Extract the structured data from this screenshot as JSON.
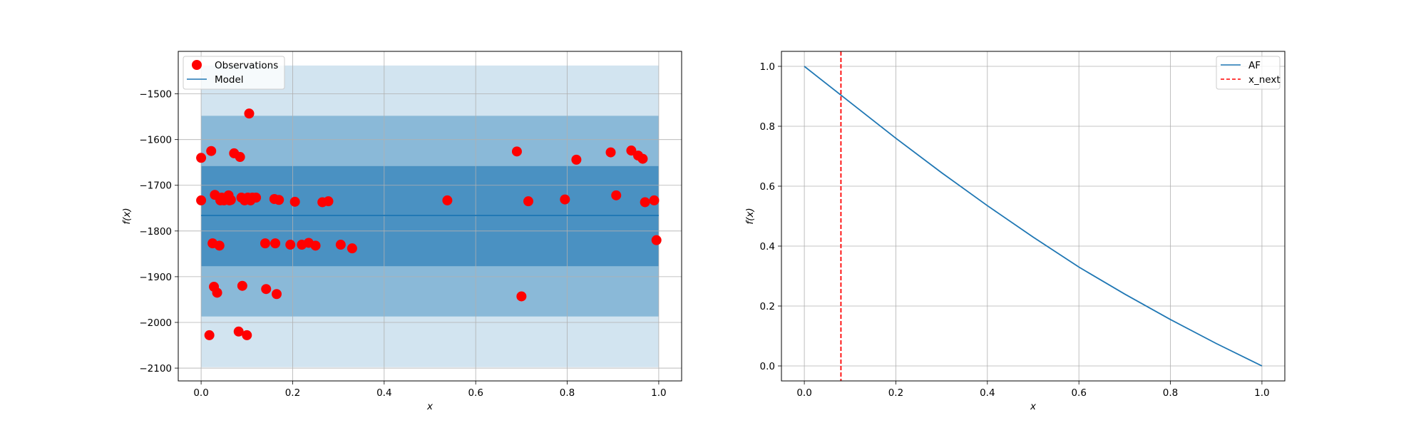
{
  "chart_data": [
    {
      "type": "scatter",
      "xlabel": "x",
      "ylabel": "f(x)",
      "xlim": [
        -0.05,
        1.05
      ],
      "ylim": [
        -2128,
        -1407
      ],
      "xticks": [
        0.0,
        0.2,
        0.4,
        0.6,
        0.8,
        1.0
      ],
      "xtick_labels": [
        "0.0",
        "0.2",
        "0.4",
        "0.6",
        "0.8",
        "1.0"
      ],
      "yticks": [
        -1500,
        -1600,
        -1700,
        -1800,
        -1900,
        -2000,
        -2100
      ],
      "ytick_labels": [
        "−1500",
        "−1600",
        "−1700",
        "−1800",
        "−1900",
        "−2000",
        "−2100"
      ],
      "grid": true,
      "legend_position": "top-left",
      "legend": [
        {
          "label": "Observations",
          "marker": "circle",
          "color": "#ff0000"
        },
        {
          "label": "Model",
          "marker": "line",
          "color": "#1f77b4"
        }
      ],
      "model": {
        "x": [
          0.0,
          1.0
        ],
        "mean": -1766
      },
      "confidence_bands": [
        {
          "lower": -2098,
          "upper": -1438,
          "color": "#1f77b4",
          "opacity": 0.2
        },
        {
          "lower": -1987,
          "upper": -1548,
          "color": "#1f77b4",
          "opacity": 0.4
        },
        {
          "lower": -1877,
          "upper": -1658,
          "color": "#1f77b4",
          "opacity": 0.6
        }
      ],
      "observations": {
        "color": "#ff0000",
        "x": [
          0.0,
          0.0,
          0.018,
          0.022,
          0.025,
          0.028,
          0.03,
          0.035,
          0.04,
          0.042,
          0.045,
          0.05,
          0.06,
          0.062,
          0.065,
          0.072,
          0.082,
          0.085,
          0.088,
          0.09,
          0.095,
          0.1,
          0.102,
          0.105,
          0.108,
          0.112,
          0.12,
          0.14,
          0.142,
          0.16,
          0.162,
          0.165,
          0.17,
          0.195,
          0.205,
          0.22,
          0.235,
          0.25,
          0.265,
          0.278,
          0.305,
          0.33,
          0.538,
          0.69,
          0.7,
          0.715,
          0.795,
          0.82,
          0.895,
          0.907,
          0.94,
          0.955,
          0.965,
          0.97,
          0.99,
          0.995
        ],
        "y": [
          -1640,
          -1733,
          -2028,
          -1625,
          -1827,
          -1922,
          -1721,
          -1935,
          -1832,
          -1733,
          -1727,
          -1733,
          -1722,
          -1733,
          -1732,
          -1630,
          -2020,
          -1638,
          -1727,
          -1920,
          -1733,
          -2028,
          -1727,
          -1543,
          -1733,
          -1727,
          -1727,
          -1827,
          -1927,
          -1730,
          -1827,
          -1938,
          -1732,
          -1830,
          -1736,
          -1830,
          -1826,
          -1832,
          -1737,
          -1735,
          -1830,
          -1838,
          -1733,
          -1626,
          -1943,
          -1735,
          -1731,
          -1644,
          -1628,
          -1722,
          -1624,
          -1635,
          -1642,
          -1737,
          -1733,
          -1820
        ]
      }
    },
    {
      "type": "line",
      "xlabel": "x",
      "ylabel": "f(x)",
      "xlim": [
        -0.05,
        1.05
      ],
      "ylim": [
        -0.05,
        1.05
      ],
      "xticks": [
        0.0,
        0.2,
        0.4,
        0.6,
        0.8,
        1.0
      ],
      "xtick_labels": [
        "0.0",
        "0.2",
        "0.4",
        "0.6",
        "0.8",
        "1.0"
      ],
      "yticks": [
        0.0,
        0.2,
        0.4,
        0.6,
        0.8,
        1.0
      ],
      "ytick_labels": [
        "0.0",
        "0.2",
        "0.4",
        "0.6",
        "0.8",
        "1.0"
      ],
      "grid": true,
      "legend_position": "top-right",
      "legend": [
        {
          "label": "AF",
          "marker": "line",
          "color": "#1f77b4"
        },
        {
          "label": "x_next",
          "marker": "dashed",
          "color": "#ff0000"
        }
      ],
      "af_curve": {
        "color": "#1f77b4",
        "x": [
          0.0,
          0.1,
          0.2,
          0.3,
          0.4,
          0.5,
          0.6,
          0.7,
          0.8,
          0.9,
          1.0
        ],
        "y": [
          1.0,
          0.88,
          0.76,
          0.645,
          0.535,
          0.43,
          0.33,
          0.24,
          0.155,
          0.075,
          0.0
        ]
      },
      "x_next": {
        "x": 0.08,
        "color": "#ff0000"
      }
    }
  ]
}
